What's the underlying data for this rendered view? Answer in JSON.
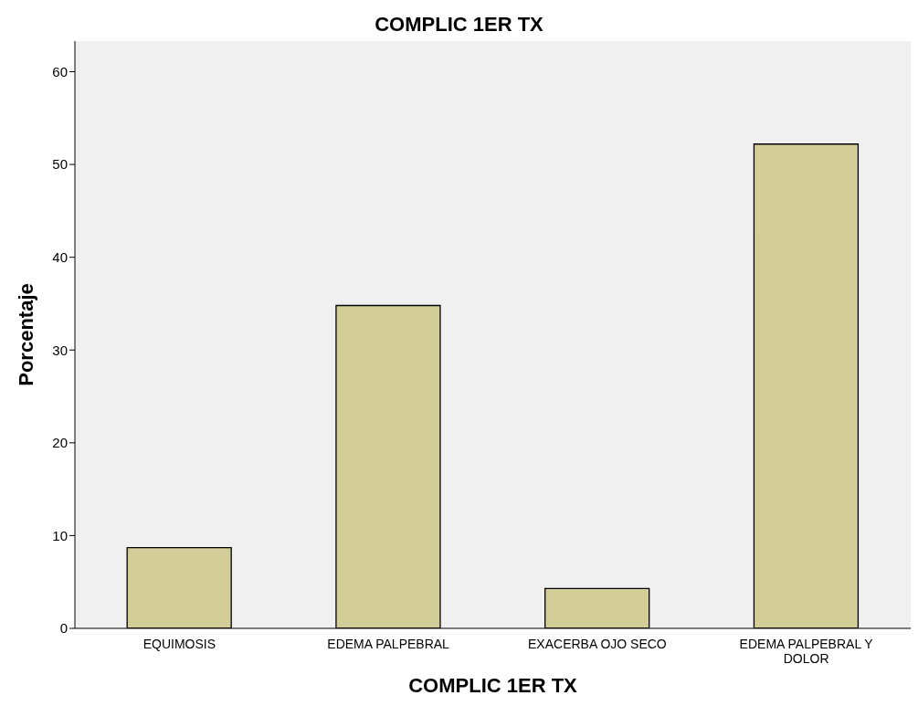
{
  "chart_data": {
    "type": "bar",
    "title": "COMPLIC 1ER TX",
    "xlabel": "COMPLIC 1ER TX",
    "ylabel": "Porcentaje",
    "categories": [
      "EQUIMOSIS",
      "EDEMA PALPEBRAL",
      "EXACERBA OJO SECO",
      "EDEMA PALPEBRAL Y DOLOR"
    ],
    "values": [
      8.7,
      34.8,
      4.3,
      52.2
    ],
    "color": "#d3ce98",
    "ylim": [
      0,
      63.3
    ],
    "yticks": [
      0,
      10,
      20,
      30,
      40,
      50,
      60
    ],
    "legend": false
  }
}
